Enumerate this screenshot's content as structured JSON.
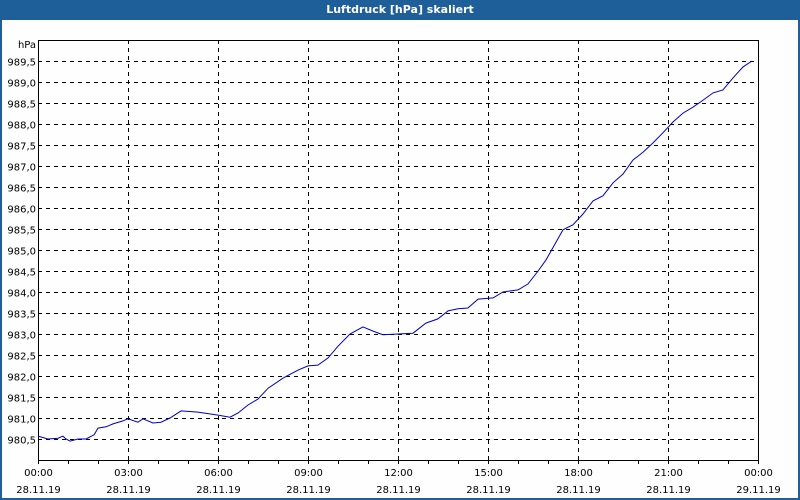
{
  "window": {
    "title": "Luftdruck [hPa] skaliert"
  },
  "colors": {
    "title_bar": "#1f5f99",
    "title_text": "#ffffff",
    "series_line": "#0000c0",
    "grid": "#000000",
    "background": "#fdfefd"
  },
  "chart_data": {
    "type": "line",
    "title": "Luftdruck [hPa] skaliert",
    "xlabel": "",
    "ylabel": "hPa",
    "ylim": [
      980.0,
      990.0
    ],
    "xlim_hours": [
      0,
      24
    ],
    "grid": true,
    "grid_style": "dashed",
    "legend": "none",
    "y_ticks": [
      "980,5",
      "981,0",
      "981,5",
      "982,0",
      "982,5",
      "983,0",
      "983,5",
      "984,0",
      "984,5",
      "985,0",
      "985,5",
      "986,0",
      "986,5",
      "987,0",
      "987,5",
      "988,0",
      "988,5",
      "989,0",
      "989,5"
    ],
    "y_tick_values": [
      980.5,
      981.0,
      981.5,
      982.0,
      982.5,
      983.0,
      983.5,
      984.0,
      984.5,
      985.0,
      985.5,
      986.0,
      986.5,
      987.0,
      987.5,
      988.0,
      988.5,
      989.0,
      989.5
    ],
    "x_ticks": [
      {
        "hour": 0,
        "time": "00:00",
        "date": "28.11.19"
      },
      {
        "hour": 3,
        "time": "03:00",
        "date": "28.11.19"
      },
      {
        "hour": 6,
        "time": "06:00",
        "date": "28.11.19"
      },
      {
        "hour": 9,
        "time": "09:00",
        "date": "28.11.19"
      },
      {
        "hour": 12,
        "time": "12:00",
        "date": "28.11.19"
      },
      {
        "hour": 15,
        "time": "15:00",
        "date": "28.11.19"
      },
      {
        "hour": 18,
        "time": "18:00",
        "date": "28.11.19"
      },
      {
        "hour": 21,
        "time": "21:00",
        "date": "28.11.19"
      },
      {
        "hour": 24,
        "time": "00:00",
        "date": "29.11.19"
      }
    ],
    "minor_tick_interval_hours": 1,
    "series": [
      {
        "name": "Luftdruck",
        "unit": "hPa",
        "x_hours": [
          0.0,
          0.33,
          0.67,
          0.83,
          0.93,
          1.07,
          1.33,
          1.6,
          1.87,
          2.0,
          2.27,
          2.5,
          2.83,
          3.0,
          3.33,
          3.5,
          3.83,
          4.1,
          4.4,
          4.77,
          5.33,
          6.0,
          6.4,
          6.67,
          7.0,
          7.33,
          7.67,
          8.17,
          8.67,
          9.0,
          9.33,
          9.67,
          10.0,
          10.4,
          10.83,
          11.17,
          11.5,
          12.0,
          12.5,
          12.93,
          13.33,
          13.67,
          14.0,
          14.33,
          14.67,
          15.17,
          15.5,
          16.0,
          16.33,
          16.67,
          16.93,
          17.2,
          17.5,
          17.83,
          18.17,
          18.5,
          18.83,
          19.17,
          19.5,
          19.83,
          20.17,
          20.5,
          20.83,
          21.17,
          21.5,
          21.83,
          22.17,
          22.5,
          22.83,
          23.17,
          23.5,
          23.8
        ],
        "values": [
          980.57,
          980.5,
          980.52,
          980.57,
          980.5,
          980.45,
          980.5,
          980.5,
          980.6,
          980.76,
          980.79,
          980.86,
          980.93,
          980.98,
          980.9,
          980.98,
          980.88,
          980.9,
          981.0,
          981.17,
          981.14,
          981.07,
          981.02,
          981.12,
          981.31,
          981.45,
          981.71,
          981.95,
          982.14,
          982.24,
          982.26,
          982.43,
          982.71,
          983.0,
          983.17,
          983.07,
          982.98,
          983.0,
          983.02,
          983.26,
          983.36,
          983.55,
          983.6,
          983.62,
          983.83,
          983.86,
          984.0,
          984.05,
          984.19,
          984.5,
          984.76,
          985.1,
          985.48,
          985.6,
          985.86,
          986.17,
          986.29,
          986.6,
          986.81,
          987.14,
          987.33,
          987.55,
          987.79,
          988.05,
          988.26,
          988.4,
          988.57,
          988.74,
          988.81,
          989.1,
          989.36,
          989.5
        ]
      }
    ]
  }
}
